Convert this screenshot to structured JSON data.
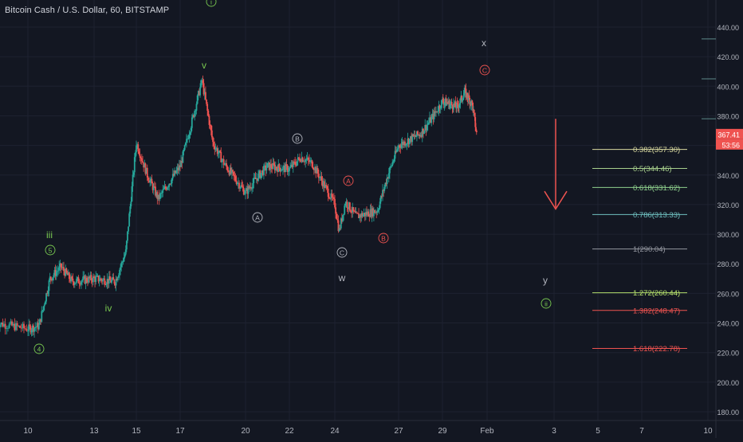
{
  "header": {
    "symbol_title": "Bitcoin Cash / U.S. Dollar, 60, BITSTAMP"
  },
  "colors": {
    "background": "#131722",
    "grid": "#1e2230",
    "candle_up": "#26a69a",
    "candle_down": "#ef5350",
    "wave_green": "#78c850",
    "wave_white": "#b2b5be",
    "wave_red": "#ef5350",
    "arrow_red": "#ef5350",
    "price_label_bg": "#ef5350"
  },
  "chart_data": {
    "type": "candlestick",
    "title": "Bitcoin Cash / U.S. Dollar, 60, BITSTAMP",
    "ylim": [
      172,
      452
    ],
    "grid": true,
    "x_ticks": [
      "10",
      "13",
      "15",
      "17",
      "20",
      "22",
      "24",
      "27",
      "29",
      "Feb",
      "3",
      "5",
      "7",
      "10"
    ],
    "y_ticks": [
      180,
      200,
      220,
      240,
      260,
      280,
      300,
      320,
      340,
      360,
      380,
      400,
      420,
      440
    ],
    "y_tick_labels": [
      "180.00",
      "200.00",
      "220.00",
      "240.00",
      "260.00",
      "280.00",
      "300.00",
      "320.00",
      "340.00",
      "360.00",
      "380.00",
      "400.00",
      "420.00",
      "440.00"
    ],
    "price_path": [
      {
        "x": "09",
        "y": 240
      },
      {
        "x": "10",
        "y": 236
      },
      {
        "x": "10.5",
        "y": 238
      },
      {
        "x": "11",
        "y": 270
      },
      {
        "x": "11.5",
        "y": 278
      },
      {
        "x": "12",
        "y": 268
      },
      {
        "x": "13",
        "y": 270
      },
      {
        "x": "14",
        "y": 268
      },
      {
        "x": "14.5",
        "y": 288
      },
      {
        "x": "15",
        "y": 362
      },
      {
        "x": "15.5",
        "y": 340
      },
      {
        "x": "16",
        "y": 324
      },
      {
        "x": "17",
        "y": 346
      },
      {
        "x": "17.5",
        "y": 374
      },
      {
        "x": "18",
        "y": 404
      },
      {
        "x": "18.5",
        "y": 362
      },
      {
        "x": "19",
        "y": 348
      },
      {
        "x": "20",
        "y": 328
      },
      {
        "x": "20.5",
        "y": 338
      },
      {
        "x": "21",
        "y": 346
      },
      {
        "x": "22",
        "y": 344
      },
      {
        "x": "22.5",
        "y": 352
      },
      {
        "x": "23",
        "y": 348
      },
      {
        "x": "24",
        "y": 320
      },
      {
        "x": "24.2",
        "y": 302
      },
      {
        "x": "24.5",
        "y": 322
      },
      {
        "x": "25",
        "y": 312
      },
      {
        "x": "26",
        "y": 316
      },
      {
        "x": "26.5",
        "y": 340
      },
      {
        "x": "27",
        "y": 360
      },
      {
        "x": "28",
        "y": 368
      },
      {
        "x": "28.5",
        "y": 378
      },
      {
        "x": "29",
        "y": 390
      },
      {
        "x": "30",
        "y": 386
      },
      {
        "x": "30.5",
        "y": 396
      },
      {
        "x": "31",
        "y": 388
      },
      {
        "x": "31.3",
        "y": 367.41
      }
    ],
    "last_price_label": "367.41",
    "countdown_label": "53:56",
    "fib_levels": [
      {
        "label": "0.382(357.30)",
        "value": 357.3,
        "color": "#d9d9a0"
      },
      {
        "label": "0.5(344.46)",
        "value": 344.46,
        "color": "#a8d08d"
      },
      {
        "label": "0.618(331.62)",
        "value": 331.62,
        "color": "#8fd08d"
      },
      {
        "label": "0.786(313.33)",
        "value": 313.33,
        "color": "#6fbfbf"
      },
      {
        "label": "1(290.04)",
        "value": 290.04,
        "color": "#9598a1"
      },
      {
        "label": "1.272(260.44)",
        "value": 260.44,
        "color": "#b5e06b"
      },
      {
        "label": "1.382(248.47)",
        "value": 248.47,
        "color": "#ef5350"
      },
      {
        "label": "1.618(222.78)",
        "value": 222.78,
        "color": "#ef5350"
      }
    ],
    "wave_labels": [
      {
        "text": "i",
        "circled": true,
        "color": "#78c850"
      },
      {
        "text": "v",
        "circled": false,
        "color": "#78c850"
      },
      {
        "text": "iii",
        "circled": false,
        "color": "#78c850"
      },
      {
        "text": "5",
        "circled": true,
        "color": "#78c850"
      },
      {
        "text": "iv",
        "circled": false,
        "color": "#78c850"
      },
      {
        "text": "4",
        "circled": true,
        "color": "#78c850"
      },
      {
        "text": "B",
        "circled": true,
        "color": "#b2b5be"
      },
      {
        "text": "A",
        "circled": true,
        "color": "#b2b5be"
      },
      {
        "text": "C",
        "circled": true,
        "color": "#b2b5be"
      },
      {
        "text": "w",
        "circled": false,
        "color": "#b2b5be"
      },
      {
        "text": "A",
        "circled": true,
        "color": "#ef5350"
      },
      {
        "text": "B",
        "circled": true,
        "color": "#ef5350"
      },
      {
        "text": "x",
        "circled": false,
        "color": "#b2b5be"
      },
      {
        "text": "C",
        "circled": true,
        "color": "#ef5350"
      },
      {
        "text": "y",
        "circled": false,
        "color": "#b2b5be"
      },
      {
        "text": "ii",
        "circled": true,
        "color": "#78c850"
      }
    ]
  }
}
